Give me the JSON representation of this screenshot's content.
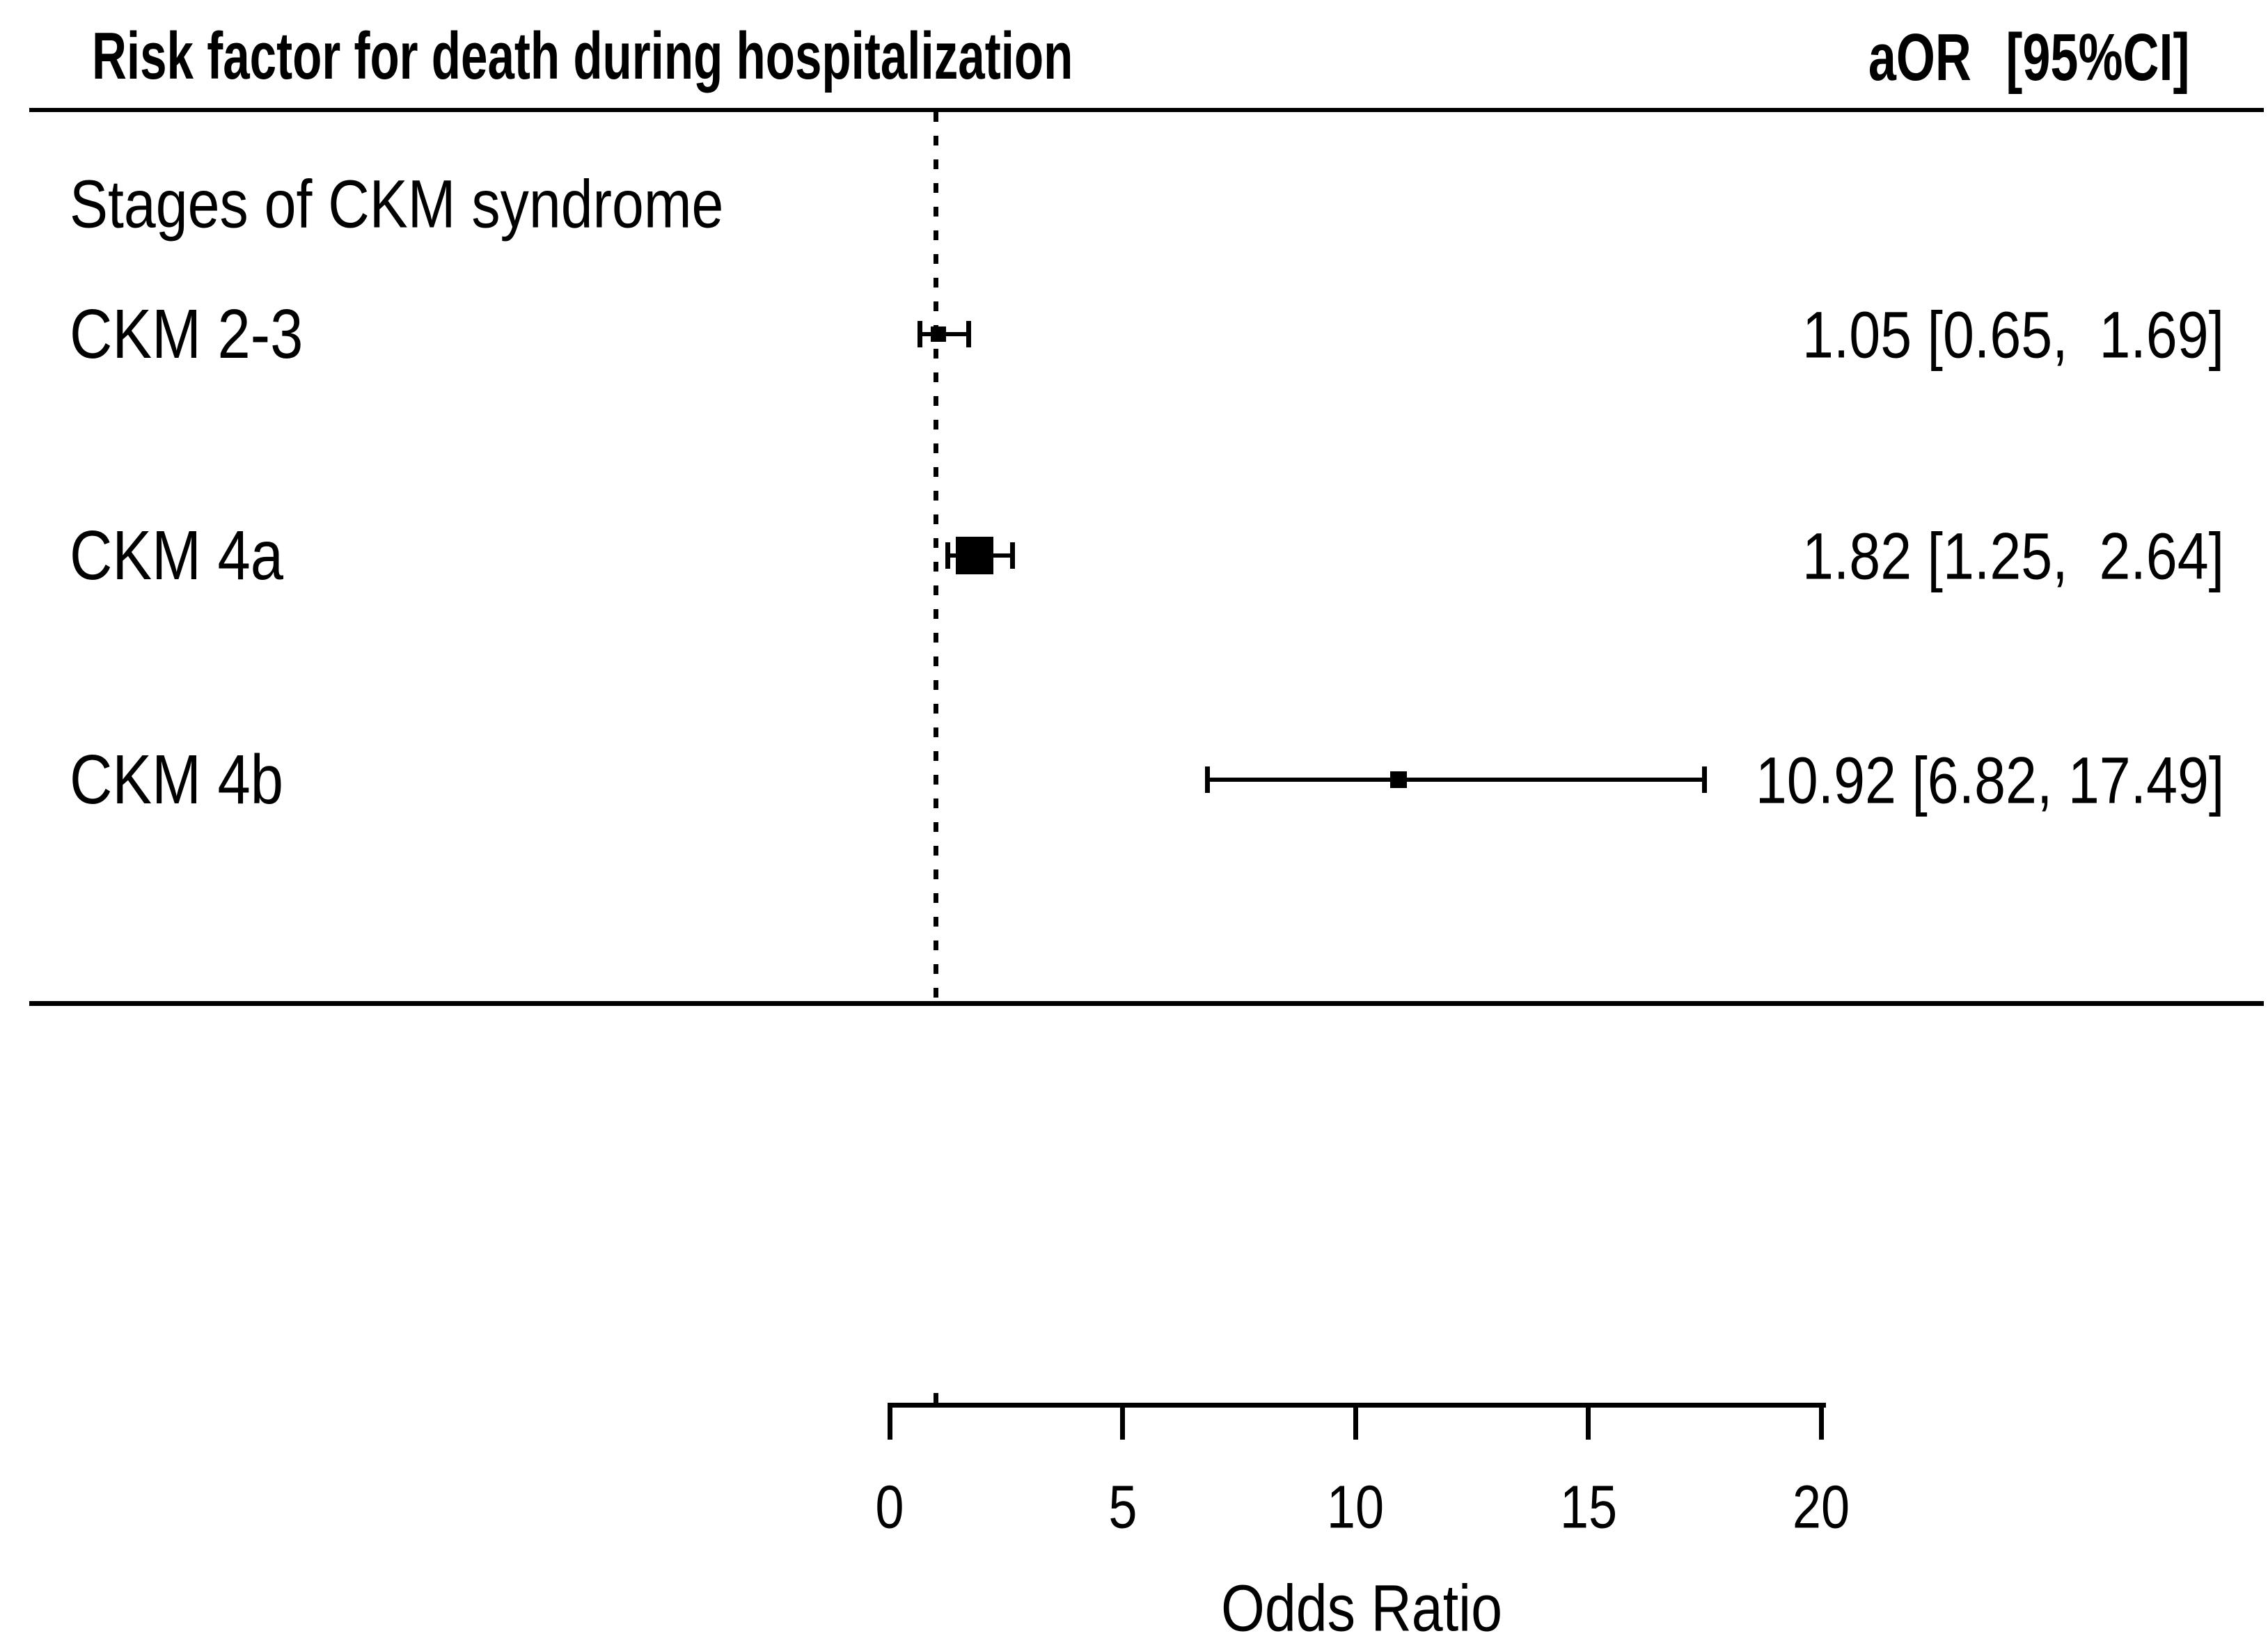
{
  "header": {
    "title": "Risk factor for death during hospitalization",
    "aor_label": "aOR",
    "ci_label": "[95%CI]"
  },
  "group_label": "Stages of CKM syndrome",
  "colors": {
    "ink": "#000000",
    "background": "#ffffff"
  },
  "chart_data": {
    "type": "forest",
    "title": "Risk factor for death during hospitalization",
    "xlabel": "Odds Ratio",
    "x_axis": {
      "min": 0,
      "max": 20,
      "ticks": [
        0,
        5,
        10,
        15,
        20
      ],
      "tick_labels": [
        "0",
        "5",
        "10",
        "15",
        "20"
      ]
    },
    "reference_line": 1,
    "grid": false,
    "rows": [
      {
        "label": "CKM 2-3",
        "aor": 1.05,
        "ci_low": 0.65,
        "ci_high": 1.69,
        "aor_text": "1.05 [0.65,  1.69]",
        "marker_size_px": 22
      },
      {
        "label": "CKM 4a",
        "aor": 1.82,
        "ci_low": 1.25,
        "ci_high": 2.64,
        "aor_text": "1.82 [1.25,  2.64]",
        "marker_size_px": 54
      },
      {
        "label": "CKM 4b",
        "aor": 10.92,
        "ci_low": 6.82,
        "ci_high": 17.49,
        "aor_text": "10.92 [6.82, 17.49]",
        "marker_size_px": 24
      }
    ]
  }
}
